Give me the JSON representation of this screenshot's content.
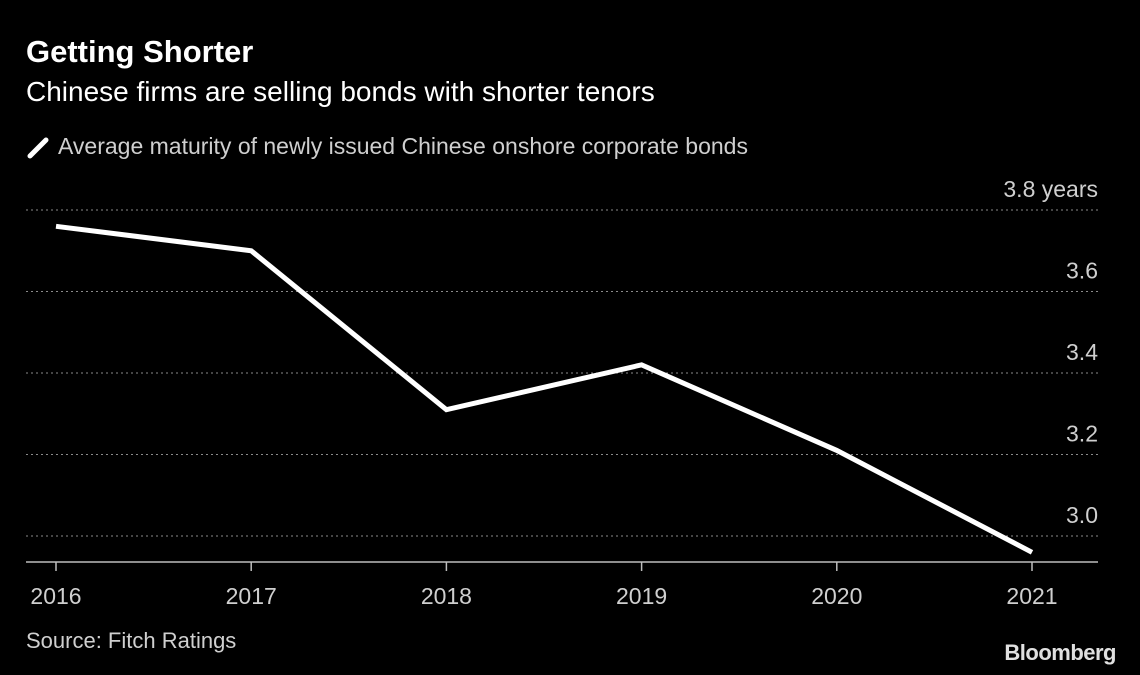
{
  "header": {
    "title": "Getting Shorter",
    "subtitle": "Chinese firms are selling bonds with shorter tenors"
  },
  "footer": {
    "source": "Source: Fitch Ratings",
    "logo": "Bloomberg"
  },
  "colors": {
    "background": "#000000",
    "line": "#ffffff",
    "grid": "#8a8a8a",
    "text": "#cfcfcf"
  },
  "chart_data": {
    "type": "line",
    "title": "Getting Shorter",
    "subtitle": "Chinese firms are selling bonds with shorter tenors",
    "x": [
      "2016",
      "2017",
      "2018",
      "2019",
      "2020",
      "2021"
    ],
    "series": [
      {
        "name": "Average maturity of newly issued Chinese onshore corporate bonds",
        "values": [
          3.76,
          3.7,
          3.31,
          3.42,
          3.21,
          2.96
        ]
      }
    ],
    "ylim": [
      2.95,
      3.8
    ],
    "yticks": [
      3.8,
      3.6,
      3.4,
      3.2,
      3.0
    ],
    "ytick_labels": [
      "3.8 years",
      "3.6",
      "3.4",
      "3.2",
      "3.0"
    ],
    "xlabel": "",
    "ylabel": "",
    "grid": true,
    "grid_style": "dotted horizontal",
    "legend_position": "top-left",
    "y_axis_side": "right"
  }
}
